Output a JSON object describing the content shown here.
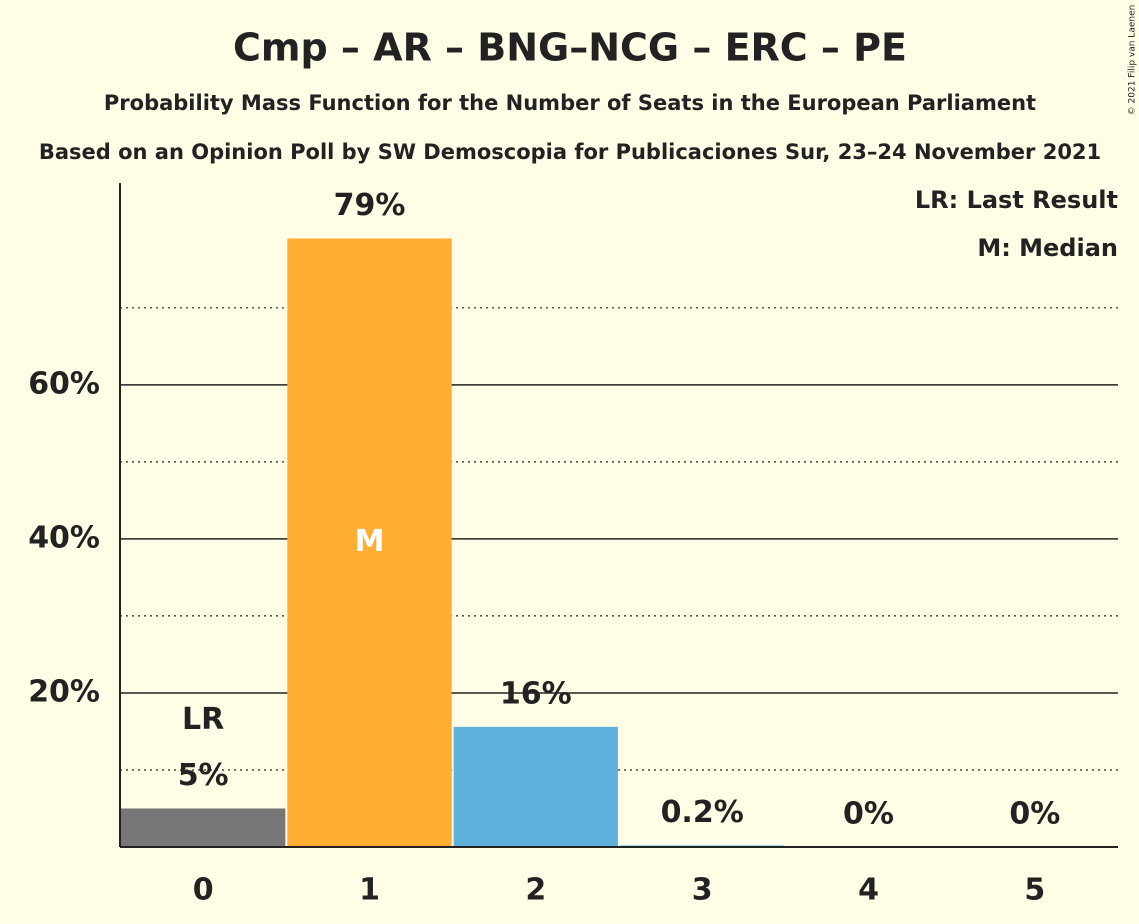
{
  "chart_data": {
    "type": "bar",
    "title": "Cmp – AR – BNG–NCG – ERC – PE",
    "subtitle": "Probability Mass Function for the Number of Seats in the European Parliament",
    "subtitle2": "Based on an Opinion Poll by SW Demoscopia for Publicaciones Sur, 23–24 November 2021",
    "copyright": "© 2021 Filip van Laenen",
    "categories": [
      "0",
      "1",
      "2",
      "3",
      "4",
      "5"
    ],
    "values": [
      5,
      79,
      15.6,
      0.2,
      0,
      0
    ],
    "value_labels": [
      "5%",
      "79%",
      "16%",
      "0.2%",
      "0%",
      "0%"
    ],
    "colors": [
      "#777777",
      "#ffad33",
      "#60b2de",
      "#60b2de",
      "#60b2de",
      "#60b2de"
    ],
    "ylim": [
      0,
      86.2
    ],
    "yticks": [
      {
        "value": 20,
        "label": "20%"
      },
      {
        "value": 40,
        "label": "40%"
      },
      {
        "value": 60,
        "label": "60%"
      }
    ],
    "minor_yticks": [
      10,
      30,
      50,
      70
    ],
    "grid": true,
    "last_result": "0",
    "last_result_label": "LR",
    "median": "1",
    "median_label": "M",
    "legend": [
      "LR: Last Result",
      "M: Median"
    ],
    "legend_position": "upper right"
  }
}
